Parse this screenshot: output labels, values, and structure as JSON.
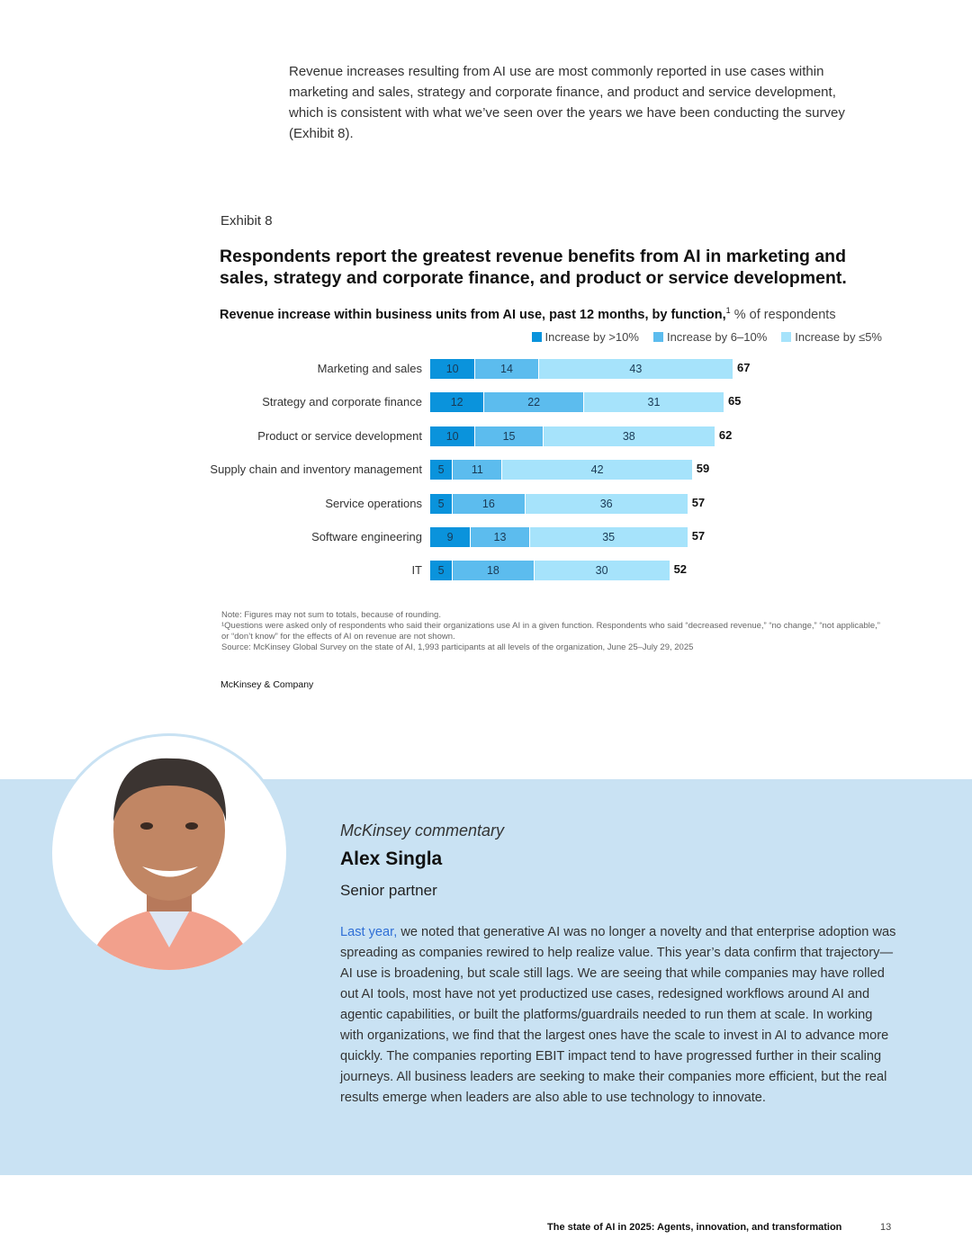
{
  "intro": "Revenue increases resulting from AI use are most commonly reported in use cases within marketing and sales, strategy and corporate finance, and product and service development, which is consistent with what we’ve seen over the years we have been conducting the survey (Exhibit 8).",
  "exhibit_label": "Exhibit 8",
  "chart_title": "Respondents report the greatest revenue benefits from AI in marketing and sales, strategy and corporate finance, and product or service development.",
  "chart_subtitle": "Revenue increase within business units from AI use, past 12 months, by function,",
  "chart_subtitle_footnote": "1",
  "chart_subtitle_unit": " % of respondents",
  "colors": {
    "gt10": "#0a93dc",
    "6to10": "#5cbcee",
    "le5": "#a6e3fb",
    "band": "#c9e2f3",
    "link": "#2f6fd6"
  },
  "chart_data": {
    "type": "bar",
    "orientation": "horizontal",
    "stacked": true,
    "categories": [
      "Marketing and sales",
      "Strategy and corporate finance",
      "Product or service development",
      "Supply chain and inventory management",
      "Service operations",
      "Software engineering",
      "IT"
    ],
    "series": [
      {
        "name": "Increase by >10%",
        "values": [
          10,
          12,
          10,
          5,
          5,
          9,
          5
        ]
      },
      {
        "name": "Increase by 6–10%",
        "values": [
          14,
          22,
          15,
          11,
          16,
          13,
          18
        ]
      },
      {
        "name": "Increase by ≤5%",
        "values": [
          43,
          31,
          38,
          42,
          36,
          35,
          30
        ]
      }
    ],
    "totals": [
      67,
      65,
      62,
      59,
      57,
      57,
      52
    ],
    "legend_placement": "top-right",
    "grid": false
  },
  "notes": [
    "Note: Figures may not sum to totals, because of rounding.",
    "¹Questions were asked only of respondents who said their organizations use AI in a given function. Respondents who said “decreased revenue,” “no change,” “not applicable,” or “don’t know” for the effects of AI on revenue are not shown.",
    "Source: McKinsey Global Survey on the state of AI, 1,993 participants at all levels of the organization, June 25–July 29, 2025"
  ],
  "brand": "McKinsey & Company",
  "commentary": {
    "kicker": "McKinsey commentary",
    "name": "Alex Singla",
    "role": "Senior partner",
    "link_text": "Last year,",
    "body": " we noted that generative AI was no longer a novelty and that enterprise adoption was spreading as companies rewired to help realize value. This year’s data confirm that trajectory—AI use is broadening, but scale still lags. We are seeing that while companies may have rolled out AI tools, most have not yet productized use cases, redesigned workflows around AI and agentic capabilities, or built the platforms/guardrails needed to run them at scale. In working with organizations, we find that the largest ones have the scale to invest in AI to advance more quickly. The companies reporting EBIT impact tend to have progressed further in their scaling journeys. All business leaders are seeking to make their companies more efficient, but the real results emerge when leaders are also able to use technology to innovate."
  },
  "footer": {
    "title": "The state of AI in 2025: Agents, innovation, and transformation",
    "page": "13"
  }
}
